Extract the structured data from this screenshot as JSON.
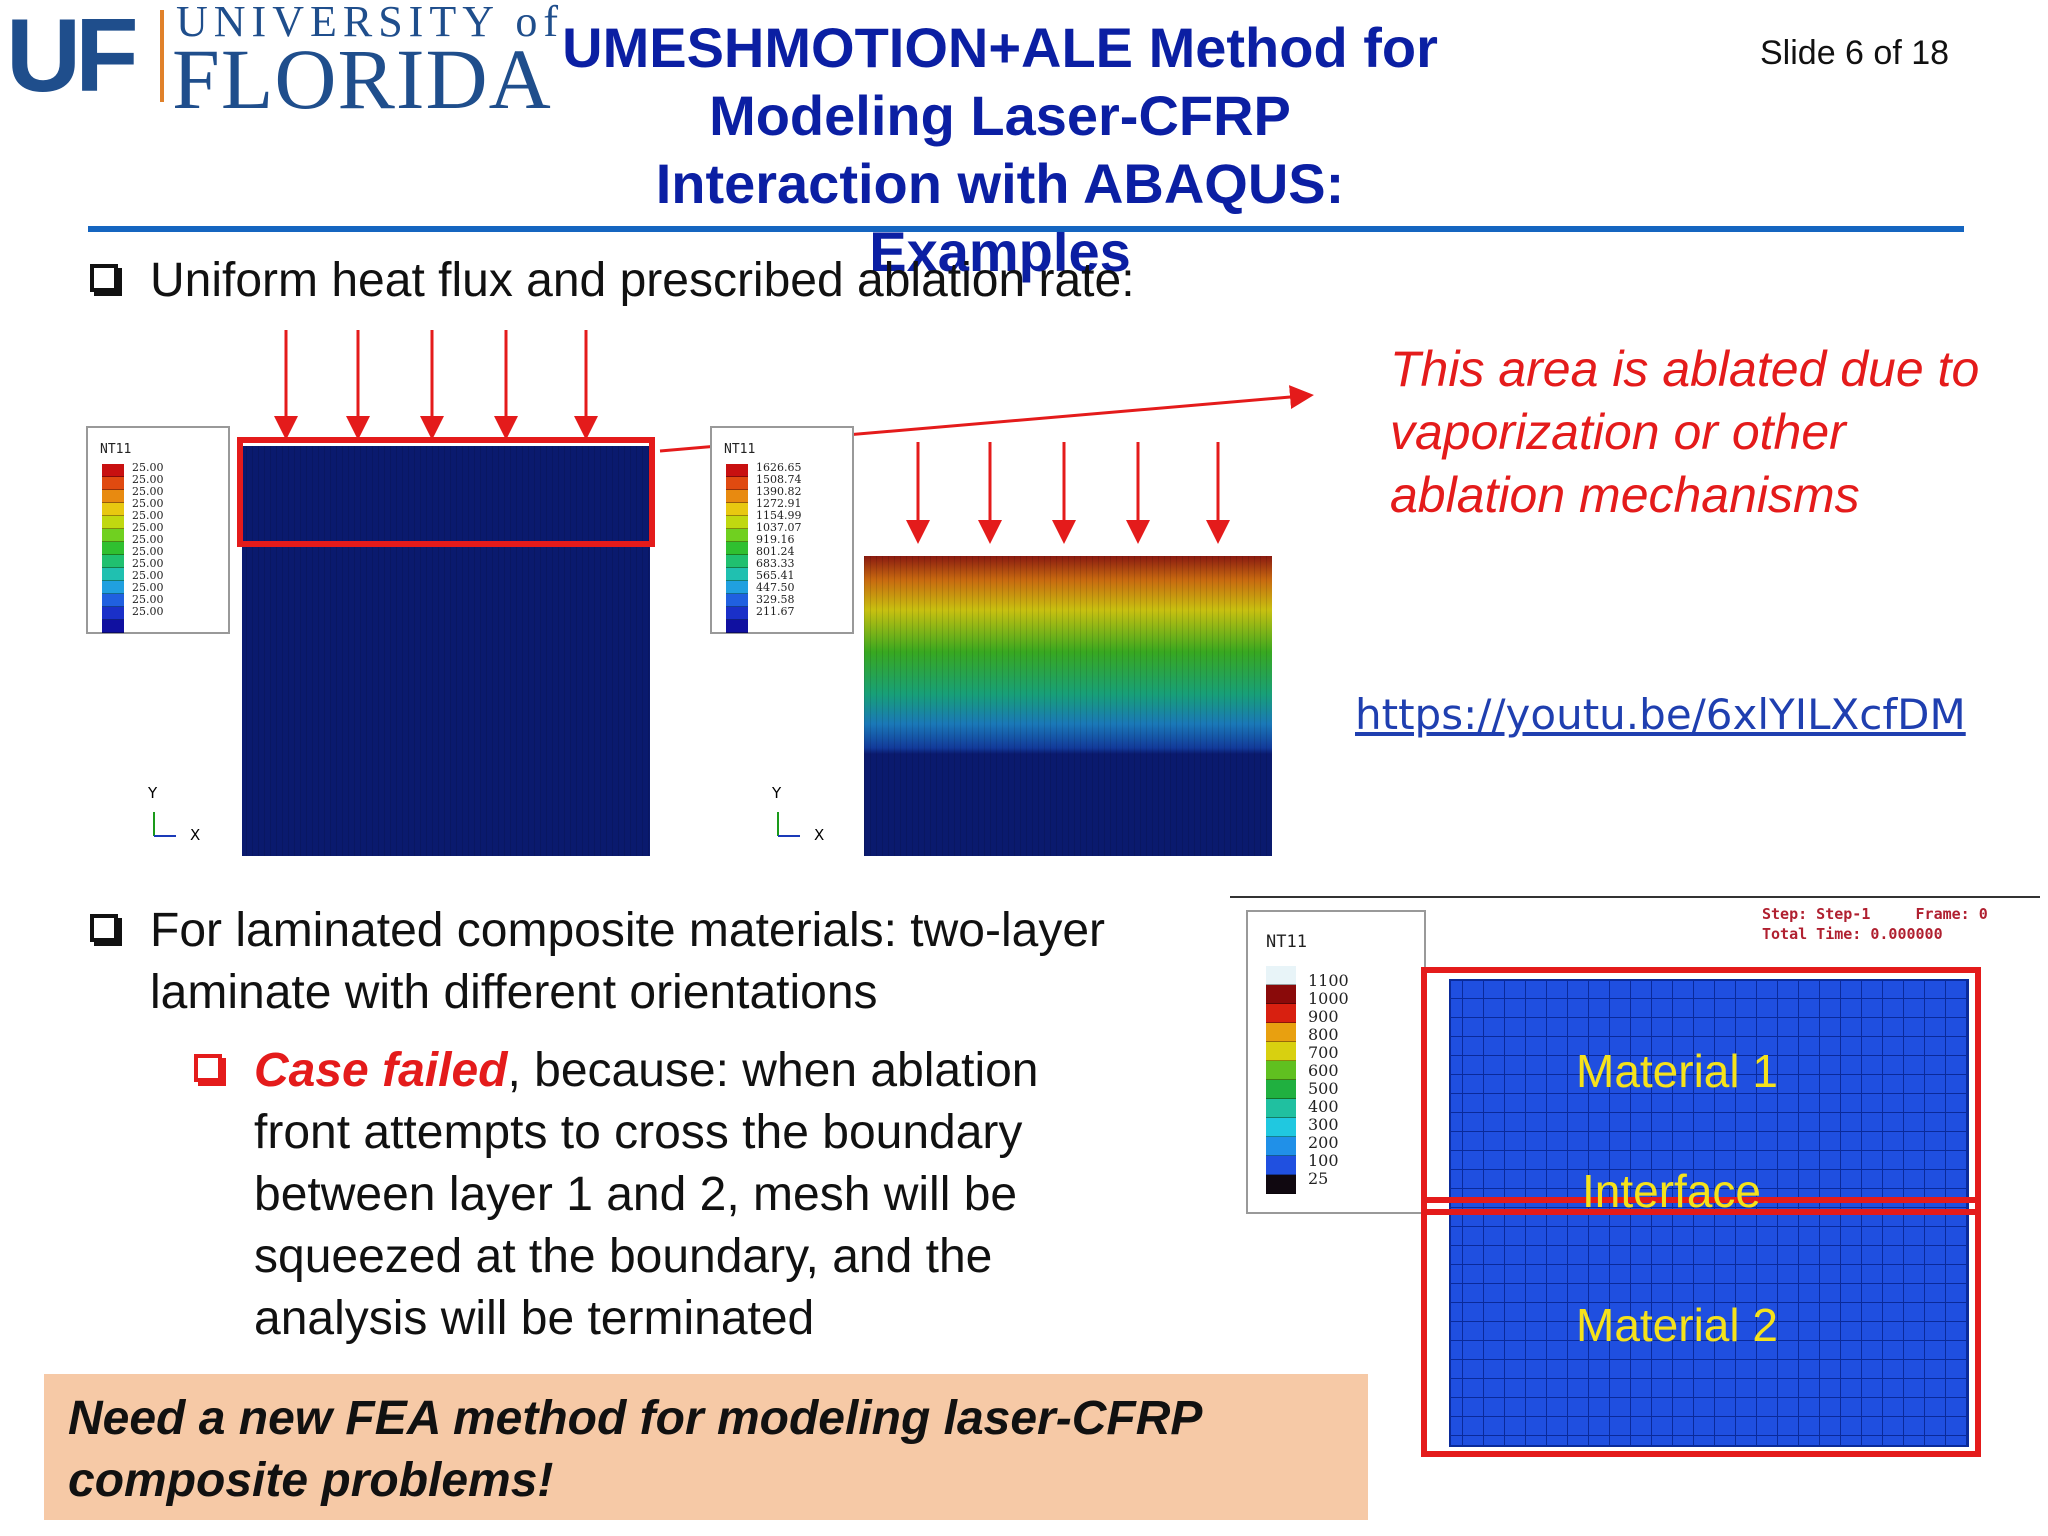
{
  "logo": {
    "uf": "UF",
    "university": "UNIVERSITY of",
    "florida": "FLORIDA"
  },
  "header": {
    "title": "UMESHMOTION+ALE Method for Modeling Laser-CFRP Interaction with ABAQUS: Examples",
    "slide_number": "Slide 6 of 18"
  },
  "bullets": {
    "uniform": "Uniform heat flux and prescribed ablation rate:",
    "laminated_line1": "For laminated composite materials: two-layer",
    "laminated_line2": "laminate with different orientations",
    "case_failed_bold": "Case failed",
    "case_failed_rest1": ", because: when ablation",
    "case_failed_lines": [
      "front attempts to cross the boundary",
      "between layer 1 and 2, mesh will be",
      "squeezed at the boundary, and the",
      "analysis will be terminated"
    ]
  },
  "ablation_note": "This area is ablated due to vaporization or other ablation mechanisms",
  "video_link": "https://youtu.be/6xlYILXcfDM",
  "callout": "Need a new FEA method for modeling laser-CFRP composite problems!",
  "figure_left": {
    "legend_title": "NT11",
    "legend_values": [
      "25.00",
      "25.00",
      "25.00",
      "25.00",
      "25.00",
      "25.00",
      "25.00",
      "25.00",
      "25.00",
      "25.00",
      "25.00",
      "25.00",
      "25.00"
    ],
    "axis_y": "Y",
    "axis_x": "X"
  },
  "figure_mid": {
    "legend_title": "NT11",
    "legend_values": [
      "1626.65",
      "1508.74",
      "1390.82",
      "1272.91",
      "1154.99",
      "1037.07",
      "919.16",
      "801.24",
      "683.33",
      "565.41",
      "447.50",
      "329.58",
      "211.67"
    ],
    "axis_y": "Y",
    "axis_x": "X"
  },
  "figure_right": {
    "legend_title": "NT11",
    "legend_values": [
      "1100",
      "1000",
      "900",
      "800",
      "700",
      "600",
      "500",
      "400",
      "300",
      "200",
      "100",
      "25"
    ],
    "step_info": "Step: Step-1     Frame: 0\nTotal Time: 0.000000",
    "material1": "Material 1",
    "interface": "Interface",
    "material2": "Material 2"
  },
  "colors": {
    "title_blue": "#0b1fa3",
    "accent_red": "#e41b1b",
    "rule_blue": "#1565c0",
    "mesh_dark": "#0a1a6e",
    "mesh_bright": "#1f4fe0",
    "callout_bg": "#f6c9a6"
  }
}
